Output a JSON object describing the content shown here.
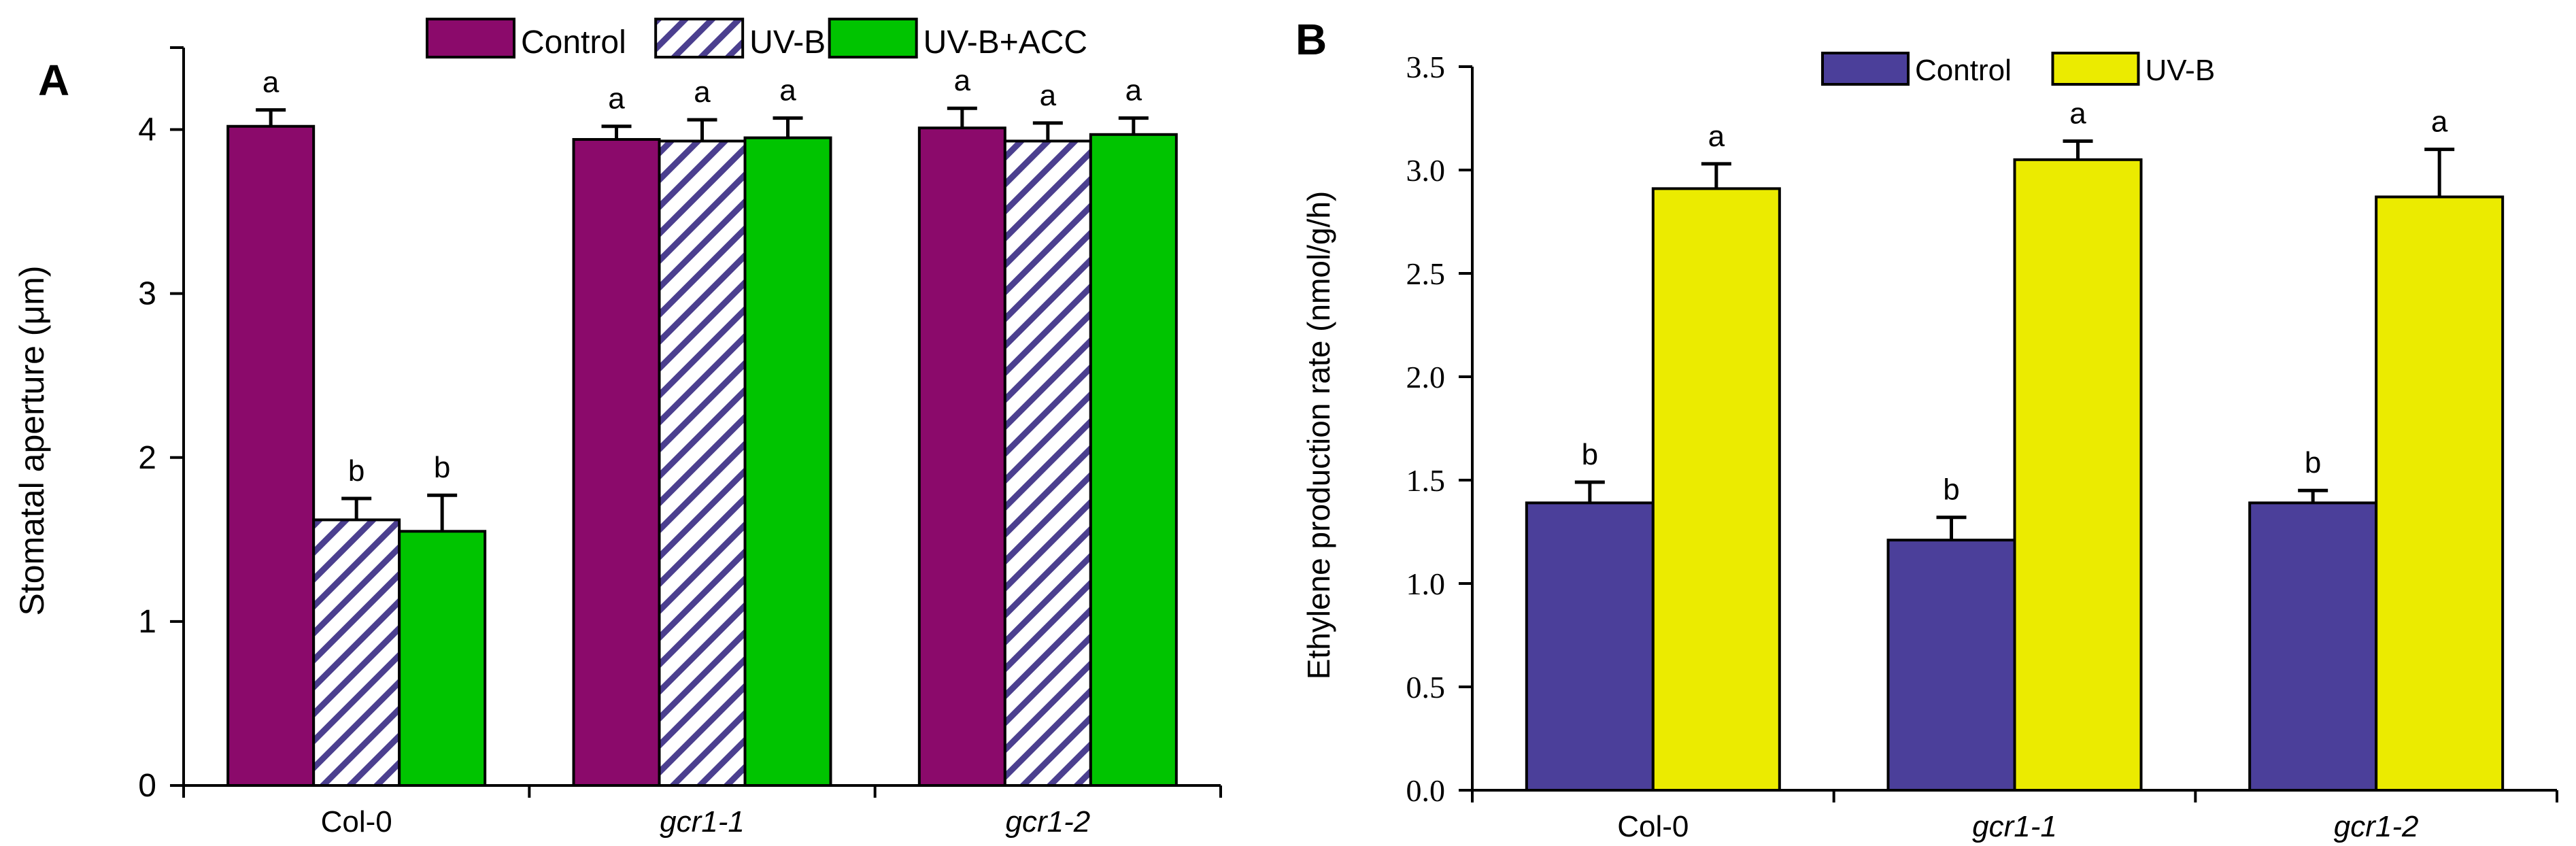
{
  "colors": {
    "control_a": "#8B0A6B",
    "uvb_a_stripe": "#4B3F8F",
    "uvb_acc_a": "#00C400",
    "control_b": "#4B3F9A",
    "uvb_b": "#EBEB00",
    "axis": "#000000"
  },
  "chart_data": [
    {
      "type": "bar",
      "panel_label": "A",
      "categories": [
        "Col-0",
        "gcr1-1",
        "gcr1-2"
      ],
      "category_italic": [
        false,
        true,
        true
      ],
      "ylabel": "Stomatal aperture (μm)",
      "xlabel": "",
      "ylim": [
        0,
        4.5
      ],
      "yticks": [
        0,
        1,
        2,
        3,
        4
      ],
      "ytick_labels": [
        "0",
        "1",
        "2",
        "3",
        "4"
      ],
      "legend_position": "top-center",
      "series": [
        {
          "name": "Control",
          "values": [
            4.02,
            3.94,
            4.01
          ],
          "errors": [
            0.1,
            0.08,
            0.12
          ],
          "letters": [
            "a",
            "a",
            "a"
          ],
          "fill": "solid",
          "color": "#8B0A6B"
        },
        {
          "name": "UV-B",
          "values": [
            1.62,
            3.93,
            3.93
          ],
          "errors": [
            0.13,
            0.13,
            0.11
          ],
          "letters": [
            "b",
            "a",
            "a"
          ],
          "fill": "hatch",
          "color": "#4B3F8F"
        },
        {
          "name": "UV-B+ACC",
          "values": [
            1.55,
            3.95,
            3.97
          ],
          "errors": [
            0.22,
            0.12,
            0.1
          ],
          "letters": [
            "b",
            "a",
            "a"
          ],
          "fill": "solid",
          "color": "#00C400"
        }
      ]
    },
    {
      "type": "bar",
      "panel_label": "B",
      "categories": [
        "Col-0",
        "gcr1-1",
        "gcr1-2"
      ],
      "category_italic": [
        false,
        true,
        true
      ],
      "ylabel": "Ethylene production rate (nmol/g/h)",
      "xlabel": "",
      "ylim": [
        0,
        3.5
      ],
      "yticks": [
        0,
        0.5,
        1.0,
        1.5,
        2.0,
        2.5,
        3.0,
        3.5
      ],
      "ytick_labels": [
        "0.0",
        "0.5",
        "1.0",
        "1.5",
        "2.0",
        "2.5",
        "3.0",
        "3.5"
      ],
      "legend_position": "top-center",
      "series": [
        {
          "name": "Control",
          "values": [
            1.39,
            1.21,
            1.39
          ],
          "errors": [
            0.1,
            0.11,
            0.06
          ],
          "letters": [
            "b",
            "b",
            "b"
          ],
          "fill": "solid",
          "color": "#4B3F9A"
        },
        {
          "name": "UV-B",
          "values": [
            2.91,
            3.05,
            2.87
          ],
          "errors": [
            0.12,
            0.09,
            0.23
          ],
          "letters": [
            "a",
            "a",
            "a"
          ],
          "fill": "solid",
          "color": "#EBEB00"
        }
      ]
    }
  ]
}
